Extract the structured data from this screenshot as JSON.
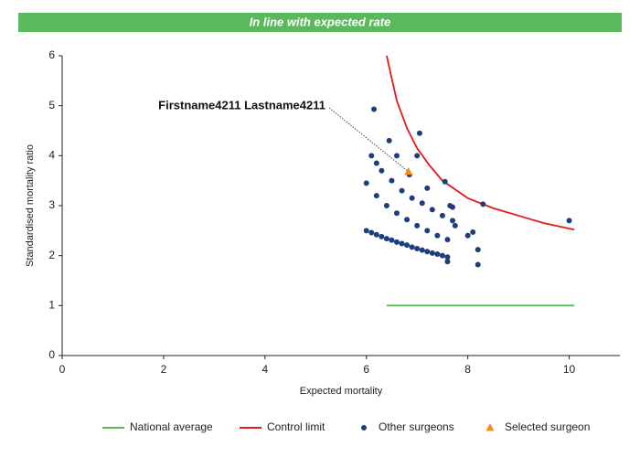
{
  "chart_data": {
    "type": "scatter",
    "banner": "In line with expected rate",
    "banner_color": "#5cb85c",
    "xlabel": "Expected mortality",
    "ylabel": "Standardised mortality ratio",
    "xlim": [
      0,
      11
    ],
    "xticks": [
      0,
      2,
      4,
      6,
      8,
      10
    ],
    "ylim": [
      0,
      6
    ],
    "yticks": [
      0,
      1,
      2,
      3,
      4,
      5,
      6
    ],
    "annotation": {
      "text": "Firstname4211 Lastname4211"
    },
    "series": [
      {
        "name": "National average",
        "color": "#5cb85c",
        "marker": "line",
        "x": [
          6.4,
          10.1
        ],
        "values": [
          1,
          1
        ]
      },
      {
        "name": "Control limit",
        "color": "#e31a1c",
        "marker": "line",
        "x": [
          6.4,
          6.6,
          6.8,
          7.0,
          7.25,
          7.5,
          8.0,
          8.5,
          9.0,
          9.5,
          10.1
        ],
        "values": [
          6.0,
          5.1,
          4.55,
          4.15,
          3.8,
          3.5,
          3.15,
          2.95,
          2.8,
          2.65,
          2.52
        ]
      },
      {
        "name": "Other surgeons",
        "color": "#1f3d7a",
        "marker": "circle",
        "x": [
          6.0,
          6.1,
          6.2,
          6.3,
          6.4,
          6.5,
          6.6,
          6.7,
          6.8,
          6.9,
          7.0,
          7.1,
          7.2,
          7.3,
          7.4,
          7.5,
          7.6,
          6.0,
          6.2,
          6.4,
          6.6,
          6.8,
          7.0,
          7.2,
          7.4,
          7.6,
          6.5,
          6.7,
          6.9,
          7.1,
          7.3,
          7.5,
          7.7,
          6.1,
          6.2,
          6.3,
          6.15,
          6.45,
          6.6,
          7.05,
          7.0,
          7.2,
          7.55,
          7.65,
          7.7,
          8.1,
          8.3,
          8.2,
          8.2,
          7.75,
          7.6,
          8.0,
          10.0,
          6.85
        ],
        "values": [
          2.5,
          2.46,
          2.42,
          2.38,
          2.34,
          2.31,
          2.27,
          2.24,
          2.21,
          2.17,
          2.14,
          2.11,
          2.08,
          2.05,
          2.03,
          2.0,
          1.97,
          3.45,
          3.2,
          3.0,
          2.85,
          2.72,
          2.6,
          2.5,
          2.4,
          2.32,
          3.5,
          3.3,
          3.15,
          3.05,
          2.92,
          2.8,
          2.7,
          4.0,
          3.85,
          3.7,
          4.93,
          4.3,
          4.0,
          4.45,
          4.0,
          3.35,
          3.48,
          3.0,
          2.97,
          2.47,
          3.03,
          2.12,
          1.82,
          2.6,
          1.88,
          2.4,
          2.7,
          3.62
        ]
      },
      {
        "name": "Selected surgeon",
        "color": "#f28e1c",
        "marker": "triangle",
        "x": [
          6.83
        ],
        "values": [
          3.68
        ]
      }
    ]
  }
}
